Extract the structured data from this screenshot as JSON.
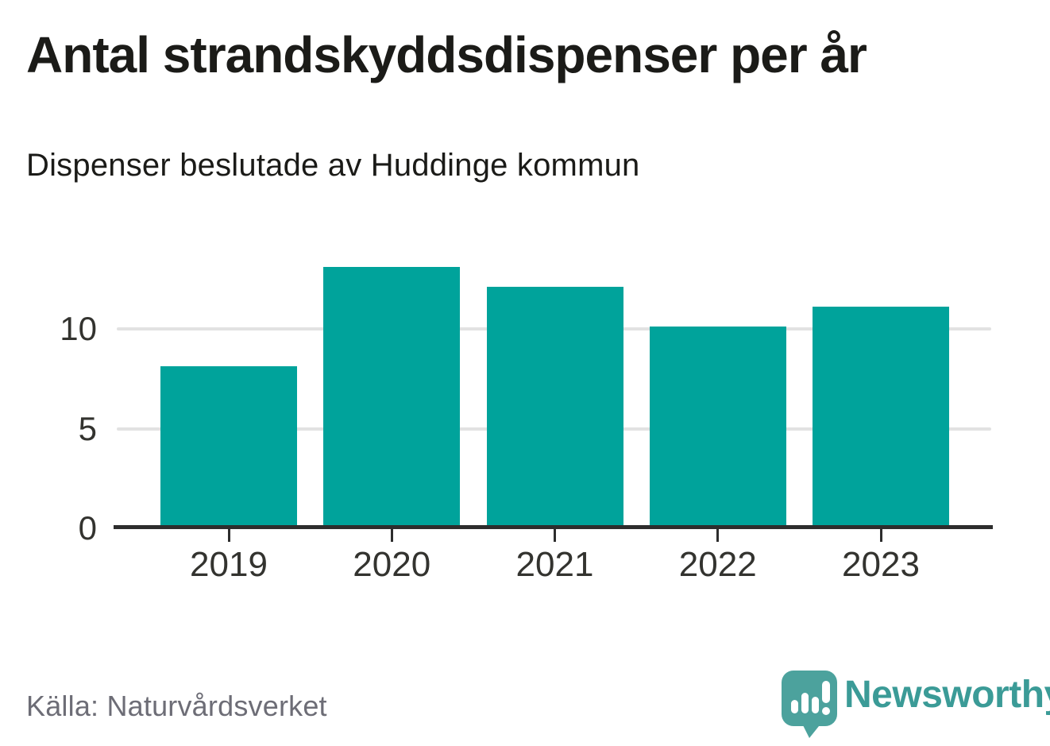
{
  "header": {
    "title": "Antal strandskyddsdispenser per år",
    "subtitle": "Dispenser beslutade av Huddinge kommun"
  },
  "chart_data": {
    "type": "bar",
    "categories": [
      "2019",
      "2020",
      "2021",
      "2022",
      "2023"
    ],
    "values": [
      8,
      13,
      12,
      10,
      11
    ],
    "title": "Antal strandskyddsdispenser per år",
    "subtitle": "Dispenser beslutade av Huddinge kommun",
    "xlabel": "",
    "ylabel": "",
    "yticks": [
      0,
      5,
      10
    ],
    "gridline_ticks": [
      5,
      10
    ],
    "ylim": [
      0,
      13
    ],
    "grid": true,
    "legend": "none",
    "bar_color": "#00A39B"
  },
  "footer": {
    "source": "Källa: Naturvårdsverket",
    "brand": "Newsworthy"
  },
  "colors": {
    "bar": "#00A39B",
    "brand_teal": "#3B9B97",
    "logo_bubble": "#4CA29D",
    "axis": "#2d2d2d",
    "grid": "#e2e2e2",
    "text": "#1b1b18",
    "tick_text": "#33332f",
    "muted": "#6d6d76"
  }
}
